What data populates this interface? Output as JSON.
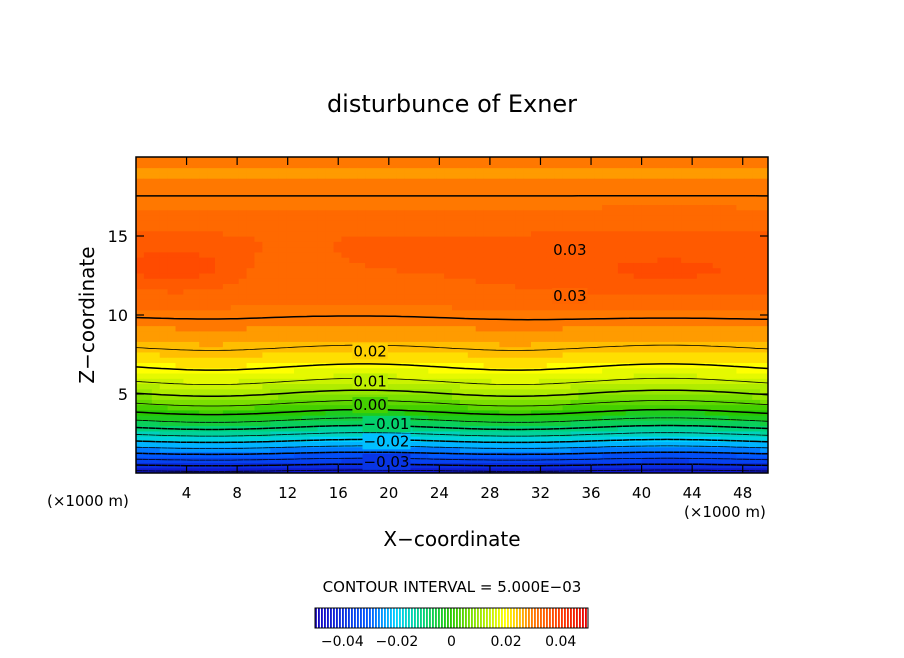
{
  "chart_data": {
    "type": "heatmap",
    "title": "disturbunce of Exner",
    "xlabel": "X−coordinate",
    "ylabel": "Z−coordinate",
    "x_unit_left": "(×1000 m)",
    "x_unit_right": "(×1000 m)",
    "xlim": [
      0,
      50
    ],
    "ylim": [
      0,
      20
    ],
    "x_ticks": [
      4,
      8,
      12,
      16,
      20,
      24,
      28,
      32,
      36,
      40,
      44,
      48
    ],
    "y_ticks": [
      5,
      10,
      15
    ],
    "grid": false,
    "contour_interval_label": "CONTOUR INTERVAL = 5.000E−03",
    "contour_labels": [
      {
        "text": "0.03",
        "x": 33,
        "z": 14.1
      },
      {
        "text": "0.03",
        "x": 33,
        "z": 11.2
      },
      {
        "text": "0.02",
        "x": 17.2,
        "z": 7.7
      },
      {
        "text": "0.01",
        "x": 17.2,
        "z": 5.8
      },
      {
        "text": "0.00",
        "x": 17.2,
        "z": 4.3
      },
      {
        "text": "−0.01",
        "x": 18.0,
        "z": 3.1
      },
      {
        "text": "−0.02",
        "x": 18.0,
        "z": 2.0
      },
      {
        "text": "−0.03",
        "x": 18.0,
        "z": 0.7
      }
    ],
    "contour_levels": [
      -0.045,
      -0.04,
      -0.035,
      -0.03,
      -0.025,
      -0.02,
      -0.015,
      -0.01,
      -0.005,
      0.0,
      0.005,
      0.01,
      0.015,
      0.02,
      0.025,
      0.03
    ],
    "colorbar": {
      "range": [
        -0.05,
        0.05
      ],
      "ticks": [
        "−0.04",
        "−0.02",
        "0",
        "0.02",
        "0.04"
      ],
      "tick_values": [
        -0.04,
        -0.02,
        0,
        0.02,
        0.04
      ]
    }
  }
}
